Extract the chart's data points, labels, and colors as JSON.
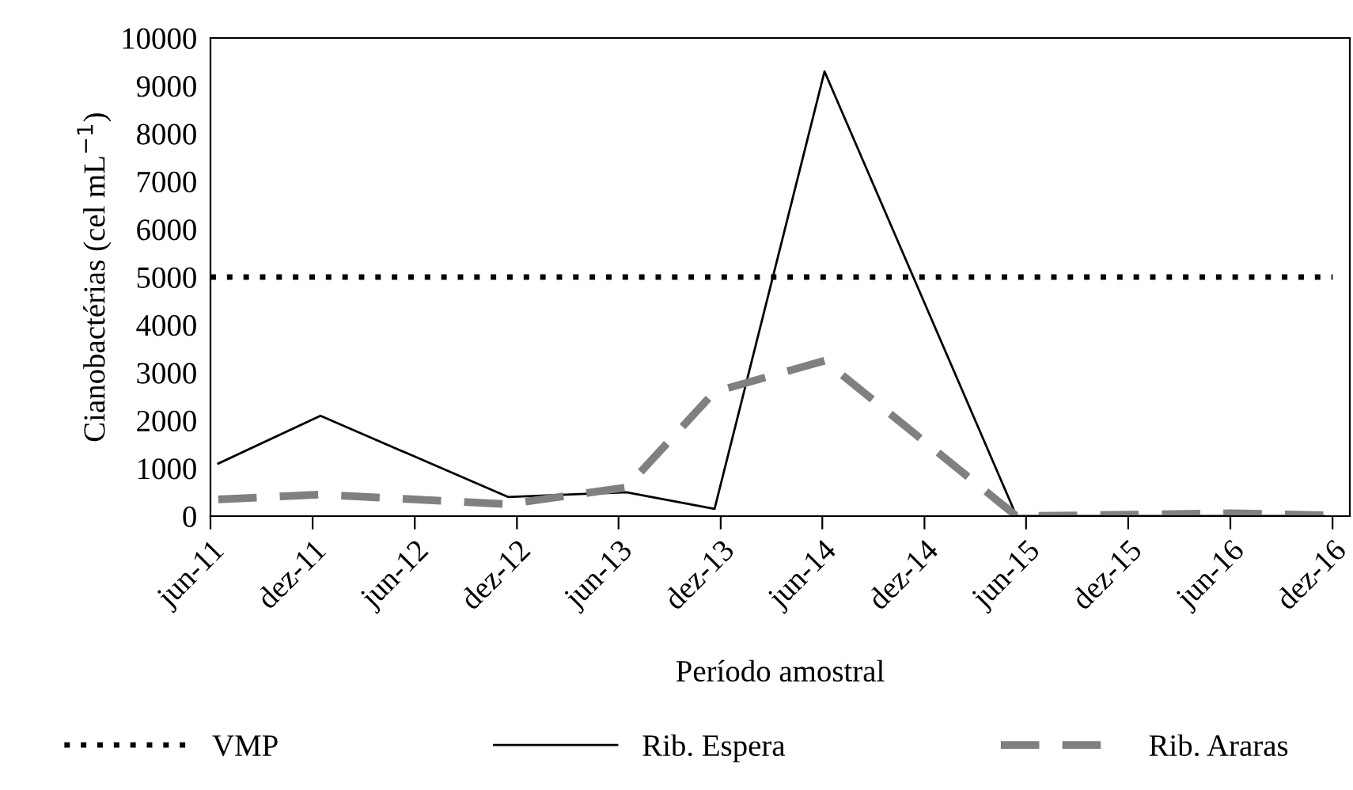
{
  "chart_data": {
    "type": "line",
    "xlabel": "Período amostral",
    "ylabel": "Cianobactérias (cel mL$^{−1}$)",
    "x": [
      "2011-06-15",
      "2011-12-15",
      "2012-11-15",
      "2013-06-15",
      "2013-11-20",
      "2014-06-05",
      "2015-05-15",
      "2015-12-01",
      "2016-06-01",
      "2016-11-15"
    ],
    "series": [
      {
        "name": "Rib. Espera",
        "color": "#000000",
        "line_style": "solid",
        "values": [
          1100,
          2100,
          400,
          500,
          150,
          9300,
          0,
          0,
          0,
          0
        ]
      },
      {
        "name": "Rib. Araras",
        "color": "#808080",
        "line_style": "dashed",
        "values": [
          350,
          450,
          250,
          600,
          2600,
          3250,
          0,
          30,
          60,
          20
        ]
      }
    ],
    "ref_lines": [
      {
        "axis": "y",
        "value": 5000,
        "label": "VMP",
        "color": "#000000",
        "line_style": "dotted"
      }
    ],
    "xlim": [
      "2011-06-01",
      "2017-01-01"
    ],
    "xticks": [
      {
        "value": "2011-06-01",
        "label": "jun-11"
      },
      {
        "value": "2011-12-01",
        "label": "dez-11"
      },
      {
        "value": "2012-06-01",
        "label": "jun-12"
      },
      {
        "value": "2012-12-01",
        "label": "dez-12"
      },
      {
        "value": "2013-06-01",
        "label": "jun-13"
      },
      {
        "value": "2013-12-01",
        "label": "dez-13"
      },
      {
        "value": "2014-06-01",
        "label": "jun-14"
      },
      {
        "value": "2014-12-01",
        "label": "dez-14"
      },
      {
        "value": "2015-06-01",
        "label": "jun-15"
      },
      {
        "value": "2015-12-01",
        "label": "dez-15"
      },
      {
        "value": "2016-06-01",
        "label": "jun-16"
      },
      {
        "value": "2016-12-01",
        "label": "dez-16"
      }
    ],
    "ylim": [
      0,
      10000
    ],
    "yticks": [
      0,
      1000,
      2000,
      3000,
      4000,
      5000,
      6000,
      7000,
      8000,
      9000,
      10000
    ],
    "grid": false,
    "legend": "bottom",
    "marker": "none"
  }
}
